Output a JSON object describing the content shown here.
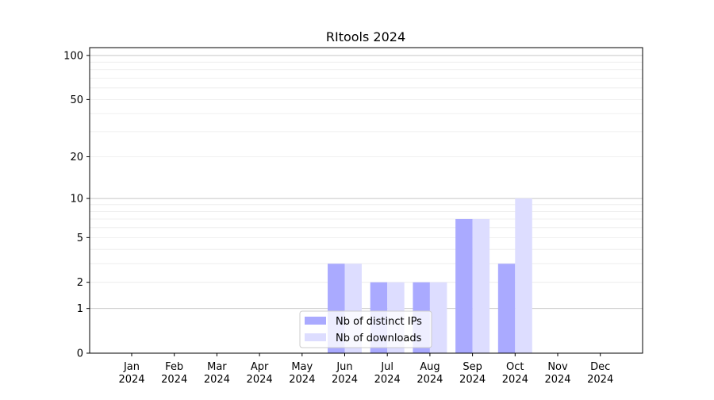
{
  "chart_data": {
    "type": "bar",
    "title": "RItools 2024",
    "xlabel": "",
    "ylabel": "",
    "categories": [
      "Jan\n2024",
      "Feb\n2024",
      "Mar\n2024",
      "Apr\n2024",
      "May\n2024",
      "Jun\n2024",
      "Jul\n2024",
      "Aug\n2024",
      "Sep\n2024",
      "Oct\n2024",
      "Nov\n2024",
      "Dec\n2024"
    ],
    "series": [
      {
        "name": "Nb of distinct IPs",
        "color": "#aaaaff",
        "values": [
          0,
          0,
          0,
          0,
          0,
          3,
          2,
          2,
          7,
          3,
          0,
          0
        ]
      },
      {
        "name": "Nb of downloads",
        "color": "#ddddff",
        "values": [
          0,
          0,
          0,
          0,
          0,
          3,
          2,
          2,
          7,
          10,
          0,
          0
        ]
      }
    ],
    "yscale": "log(1+y)",
    "yticks": [
      0,
      1,
      2,
      5,
      10,
      20,
      50,
      100
    ],
    "ylim": [
      0,
      113
    ],
    "grid": true,
    "legend_placement": "lower-center"
  }
}
